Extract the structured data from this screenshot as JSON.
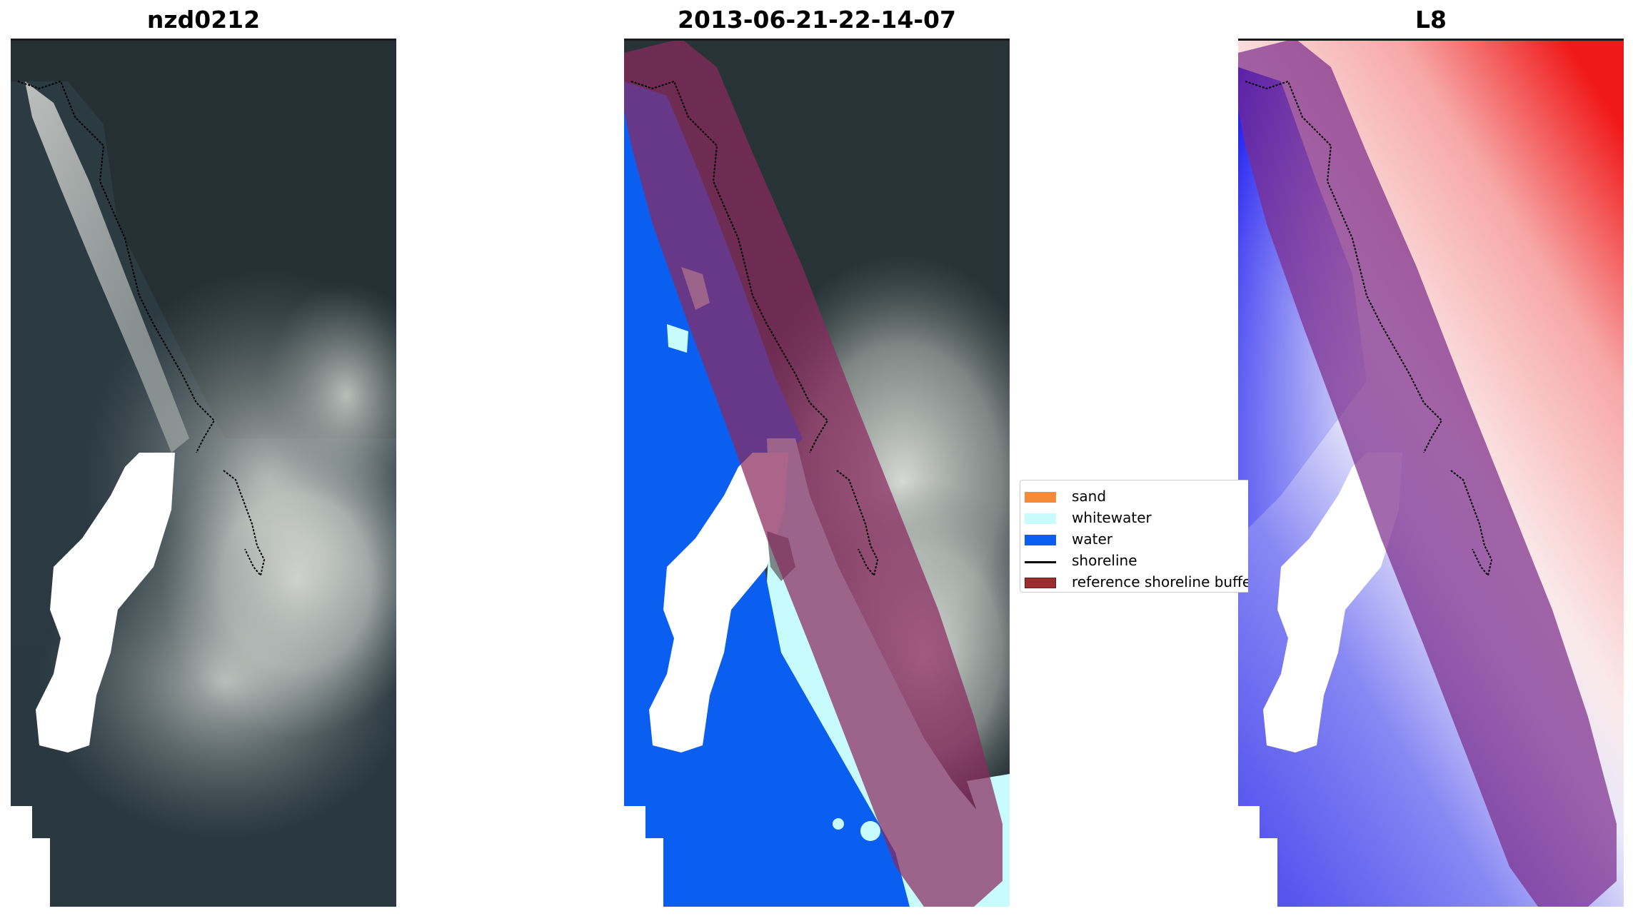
{
  "panels": [
    {
      "title": "nzd0212"
    },
    {
      "title": "2013-06-21-22-14-07"
    },
    {
      "title": "L8"
    }
  ],
  "legend": {
    "items": [
      {
        "label": "sand",
        "color": "#f58a3b",
        "kind": "patch"
      },
      {
        "label": "whitewater",
        "color": "#c8fcfc",
        "kind": "patch"
      },
      {
        "label": "water",
        "color": "#0a5ef0",
        "kind": "patch"
      },
      {
        "label": "shoreline",
        "color": "#000000",
        "kind": "line"
      },
      {
        "label": "reference shoreline buffer",
        "color": "#9b2c30",
        "kind": "patch"
      }
    ]
  },
  "colors": {
    "rgb_sea": "#2c3a42",
    "rgb_land": "#263235",
    "cloud": "#d8dcd6",
    "water_class": "#0a5ef0",
    "whitewater_class": "#c8fcfc",
    "buffer_overlay": "#8a2a5e",
    "index_high": "#f01818",
    "index_low": "#1818f0"
  }
}
